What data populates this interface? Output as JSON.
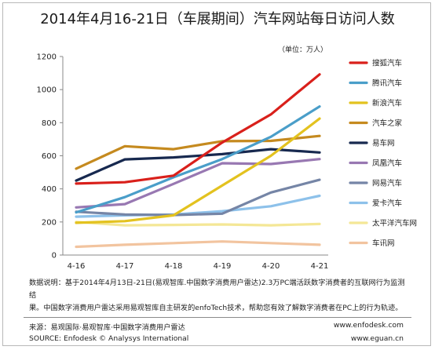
{
  "title": "2014年4月16-21日（车展期间）汽车网站每日访问人数",
  "unit_label": "（单位：万人）",
  "chart_data": {
    "type": "line",
    "x": [
      "4-16",
      "4-17",
      "4-18",
      "4-19",
      "4-20",
      "4-21"
    ],
    "ylim": [
      0,
      1200
    ],
    "yticks": [
      0,
      200,
      400,
      600,
      800,
      1000,
      1200
    ],
    "grid": false,
    "legend_position": "right",
    "series": [
      {
        "name": "搜狐汽车",
        "color": "#d9201b",
        "values": [
          432,
          440,
          480,
          680,
          850,
          1092
        ]
      },
      {
        "name": "腾讯汽车",
        "color": "#4a9ec9",
        "values": [
          258,
          350,
          470,
          580,
          715,
          898
        ]
      },
      {
        "name": "新浪汽车",
        "color": "#e3c21f",
        "values": [
          195,
          205,
          240,
          420,
          600,
          825
        ]
      },
      {
        "name": "汽车之家",
        "color": "#c58a1f",
        "values": [
          522,
          658,
          640,
          688,
          690,
          720
        ]
      },
      {
        "name": "易车网",
        "color": "#17294f",
        "values": [
          450,
          578,
          590,
          610,
          640,
          620
        ]
      },
      {
        "name": "凤凰汽车",
        "color": "#9878b2",
        "values": [
          288,
          308,
          430,
          555,
          550,
          580
        ]
      },
      {
        "name": "网易汽车",
        "color": "#7585a6",
        "values": [
          262,
          245,
          242,
          250,
          378,
          455
        ]
      },
      {
        "name": "爱卡汽车",
        "color": "#8dc1ea",
        "values": [
          232,
          240,
          245,
          265,
          295,
          358
        ]
      },
      {
        "name": "太平洋汽车网",
        "color": "#f4e796",
        "values": [
          200,
          180,
          182,
          185,
          180,
          188
        ]
      },
      {
        "name": "车讯网",
        "color": "#f2c49f",
        "values": [
          50,
          62,
          72,
          82,
          72,
          62
        ]
      }
    ]
  },
  "note_lines": [
    "数据说明：基于2014年4月13日-21日(易观智库.中国数字消费用户雷达)2.3万PC端活跃数字消费者的互联网行为监测结",
    "果。中国数字消费用户雷达采用易观智库自主研发的enfoTech技术，帮助您有效了解数字消费者在PC上的行为轨迹。"
  ],
  "footer": {
    "source_cn": "来源：易观国际·易观智库·中国数字消费用户雷达",
    "source_en": "SOURCE: Enfodesk © Analysys International",
    "url1": "www.enfodesk.com",
    "url2": "www.eguan.cn"
  }
}
